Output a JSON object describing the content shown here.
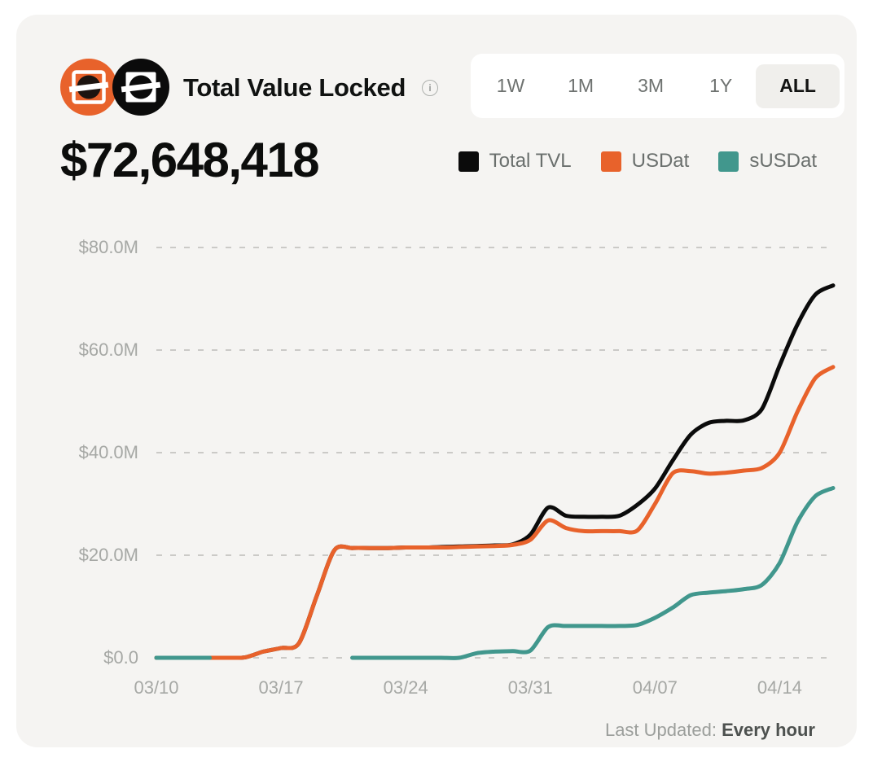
{
  "header": {
    "title": "Total Value Locked",
    "info_glyph": "i",
    "total_value": "$72,648,418",
    "range_options": [
      {
        "label": "1W",
        "selected": false
      },
      {
        "label": "1M",
        "selected": false
      },
      {
        "label": "3M",
        "selected": false
      },
      {
        "label": "1Y",
        "selected": false
      },
      {
        "label": "ALL",
        "selected": true
      }
    ]
  },
  "legend": {
    "items": [
      {
        "label": "Total TVL",
        "color": "#0b0b0b"
      },
      {
        "label": "USDat",
        "color": "#e8622b"
      },
      {
        "label": "sUSDat",
        "color": "#41978d"
      }
    ]
  },
  "footer": {
    "last_updated_label": "Last Updated:",
    "last_updated_value": "Every hour"
  },
  "colors": {
    "card_bg": "#f5f4f2",
    "grid": "#cbcac7",
    "axis_text": "#a6a8a5",
    "total_tvl": "#0b0b0b",
    "usdat_orange": "#e8622b",
    "susdat_teal": "#41978d"
  },
  "chart_data": {
    "type": "line",
    "title": "Total Value Locked",
    "unit": "USD millions",
    "grid": "horizontal dashed",
    "legend_position": "top-right",
    "ylim": [
      0,
      80
    ],
    "y_ticks": [
      {
        "value": 0,
        "label": "$0.0"
      },
      {
        "value": 20,
        "label": "$20.0M"
      },
      {
        "value": 40,
        "label": "$40.0M"
      },
      {
        "value": 60,
        "label": "$60.0M"
      },
      {
        "value": 80,
        "label": "$80.0M"
      }
    ],
    "x": [
      "03/10",
      "03/11",
      "03/12",
      "03/13",
      "03/14",
      "03/15",
      "03/16",
      "03/17",
      "03/18",
      "03/19",
      "03/20",
      "03/21",
      "03/22",
      "03/23",
      "03/24",
      "03/25",
      "03/26",
      "03/27",
      "03/28",
      "03/29",
      "03/30",
      "03/31",
      "04/01",
      "04/02",
      "04/03",
      "04/04",
      "04/05",
      "04/06",
      "04/07",
      "04/08",
      "04/09",
      "04/10",
      "04/11",
      "04/12",
      "04/13",
      "04/14",
      "04/15",
      "04/16",
      "04/17"
    ],
    "x_tick_labels": [
      "03/10",
      "03/17",
      "03/24",
      "03/31",
      "04/07",
      "04/14"
    ],
    "x_tick_indices": [
      0,
      7,
      14,
      21,
      28,
      35
    ],
    "series": [
      {
        "name": "Total TVL",
        "color": "#0b0b0b",
        "values": [
          0,
          0,
          0,
          0,
          0,
          0.1,
          1.2,
          1.9,
          2.8,
          12,
          21.0,
          21.4,
          21.4,
          21.4,
          21.5,
          21.5,
          21.6,
          21.7,
          21.8,
          21.9,
          22.1,
          24.0,
          29.3,
          27.7,
          27.5,
          27.5,
          27.7,
          29.8,
          33.0,
          38.5,
          43.5,
          45.8,
          46.2,
          46.3,
          48.5,
          57.0,
          65.0,
          70.8,
          72.6
        ]
      },
      {
        "name": "USDat",
        "color": "#e8622b",
        "values": [
          0,
          0,
          0,
          0,
          0,
          0.1,
          1.2,
          1.9,
          2.8,
          12,
          21.0,
          21.4,
          21.4,
          21.4,
          21.5,
          21.5,
          21.5,
          21.6,
          21.7,
          21.8,
          22.0,
          23.0,
          26.8,
          25.3,
          24.7,
          24.7,
          24.7,
          24.8,
          30.0,
          36.0,
          36.4,
          35.9,
          36.1,
          36.5,
          37.0,
          40.0,
          48.0,
          54.5,
          56.7
        ]
      },
      {
        "name": "sUSDat",
        "color": "#41978d",
        "values": [
          0,
          0,
          0,
          0,
          null,
          null,
          null,
          null,
          null,
          null,
          null,
          0,
          0,
          0,
          0,
          0,
          0,
          0,
          0.9,
          1.2,
          1.3,
          1.4,
          6.0,
          6.2,
          6.2,
          6.2,
          6.2,
          6.4,
          7.8,
          9.8,
          12.2,
          12.7,
          13.0,
          13.4,
          14.2,
          18.5,
          26.5,
          31.5,
          33.1
        ]
      }
    ]
  }
}
